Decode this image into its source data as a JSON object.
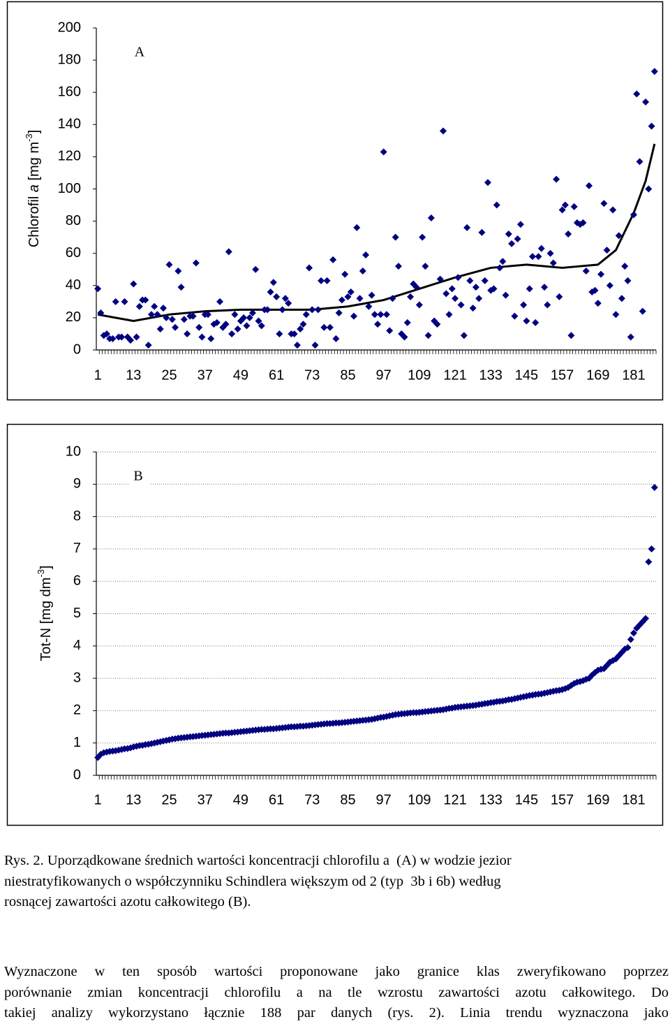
{
  "chart_data": [
    {
      "type": "scatter",
      "panel": "A",
      "ylabel": [
        "Chlorofil ",
        "a",
        " [mg m",
        "-3",
        "]"
      ],
      "color": "#000080",
      "grid": false,
      "ylim": [
        0,
        200
      ],
      "yticks": [
        0,
        20,
        40,
        60,
        80,
        100,
        120,
        140,
        160,
        180,
        200
      ],
      "categories": [
        "1",
        null,
        null,
        null,
        null,
        null,
        null,
        null,
        null,
        null,
        null,
        null,
        "13",
        null,
        null,
        null,
        null,
        null,
        null,
        null,
        null,
        null,
        null,
        null,
        "25",
        null,
        null,
        null,
        null,
        null,
        null,
        null,
        null,
        null,
        null,
        null,
        "37",
        null,
        null,
        null,
        null,
        null,
        null,
        null,
        null,
        null,
        null,
        null,
        "49",
        null,
        null,
        null,
        null,
        null,
        null,
        null,
        null,
        null,
        null,
        null,
        "61",
        null,
        null,
        null,
        null,
        null,
        null,
        null,
        null,
        null,
        null,
        null,
        "73",
        null,
        null,
        null,
        null,
        null,
        null,
        null,
        null,
        null,
        null,
        null,
        "85",
        null,
        null,
        null,
        null,
        null,
        null,
        null,
        null,
        null,
        null,
        null,
        "97",
        null,
        null,
        null,
        null,
        null,
        null,
        null,
        null,
        null,
        null,
        null,
        "109",
        null,
        null,
        null,
        null,
        null,
        null,
        null,
        null,
        null,
        null,
        null,
        "121",
        null,
        null,
        null,
        null,
        null,
        null,
        null,
        null,
        null,
        null,
        null,
        "133",
        null,
        null,
        null,
        null,
        null,
        null,
        null,
        null,
        null,
        null,
        null,
        "145",
        null,
        null,
        null,
        null,
        null,
        null,
        null,
        null,
        null,
        null,
        null,
        "157",
        null,
        null,
        null,
        null,
        null,
        null,
        null,
        null,
        null,
        null,
        null,
        "169",
        null,
        null,
        null,
        null,
        null,
        null,
        null,
        null,
        null,
        null,
        null,
        "181",
        null,
        null,
        null,
        null,
        null,
        null,
        null
      ],
      "values": [
        38,
        23,
        9,
        10,
        7,
        7,
        30,
        8,
        8,
        30,
        8,
        6,
        41,
        8,
        27,
        31,
        31,
        3,
        22,
        27,
        22,
        13,
        26,
        20,
        53,
        19,
        14,
        49,
        39,
        19,
        10,
        21,
        21,
        54,
        14,
        8,
        22,
        22,
        7,
        16,
        17,
        30,
        14,
        16,
        61,
        10,
        22,
        13,
        18,
        20,
        15,
        20,
        23,
        50,
        18,
        15,
        25,
        25,
        36,
        42,
        33,
        10,
        25,
        32,
        29,
        10,
        10,
        3,
        13,
        16,
        22,
        51,
        25,
        3,
        25,
        43,
        14,
        43,
        14,
        56,
        7,
        23,
        31,
        47,
        33,
        36,
        21,
        76,
        32,
        49,
        59,
        27,
        34,
        22,
        16,
        22,
        123,
        22,
        12,
        32,
        70,
        52,
        10,
        8,
        17,
        33,
        41,
        39,
        28,
        70,
        52,
        9,
        82,
        18,
        16,
        44,
        136,
        35,
        22,
        38,
        32,
        45,
        28,
        9,
        76,
        43,
        26,
        39,
        32,
        73,
        43,
        104,
        37,
        38,
        90,
        51,
        55,
        34,
        72,
        66,
        21,
        69,
        78,
        28,
        18,
        38,
        58,
        17,
        58,
        63,
        39,
        28,
        60,
        54,
        106,
        33,
        87,
        90,
        72,
        9,
        89,
        79,
        78,
        79,
        49,
        102,
        36,
        37,
        29,
        47,
        91,
        62,
        40,
        87,
        22,
        71,
        32,
        52,
        43,
        8,
        84,
        159,
        117,
        24,
        154,
        100,
        139,
        173
      ],
      "trend": {
        "color": "#000000",
        "x": [
          1,
          13,
          25,
          37,
          49,
          61,
          73,
          85,
          97,
          109,
          121,
          133,
          145,
          157,
          169,
          175,
          181,
          185,
          188
        ],
        "values": [
          22,
          18,
          22,
          24,
          25,
          25,
          25,
          27,
          31,
          38,
          45,
          51,
          53,
          51,
          53,
          62,
          85,
          105,
          128
        ]
      }
    },
    {
      "type": "scatter",
      "panel": "B",
      "ylabel": [
        "Tot-N [mg dm",
        "-3",
        "]"
      ],
      "color": "#000080",
      "grid": true,
      "ylim": [
        0,
        10
      ],
      "yticks": [
        0,
        1,
        2,
        3,
        4,
        5,
        6,
        7,
        8,
        9,
        10
      ],
      "categories": [
        "1",
        null,
        null,
        null,
        null,
        null,
        null,
        null,
        null,
        null,
        null,
        null,
        "13",
        null,
        null,
        null,
        null,
        null,
        null,
        null,
        null,
        null,
        null,
        null,
        "25",
        null,
        null,
        null,
        null,
        null,
        null,
        null,
        null,
        null,
        null,
        null,
        "37",
        null,
        null,
        null,
        null,
        null,
        null,
        null,
        null,
        null,
        null,
        null,
        "49",
        null,
        null,
        null,
        null,
        null,
        null,
        null,
        null,
        null,
        null,
        null,
        "61",
        null,
        null,
        null,
        null,
        null,
        null,
        null,
        null,
        null,
        null,
        null,
        "73",
        null,
        null,
        null,
        null,
        null,
        null,
        null,
        null,
        null,
        null,
        null,
        "85",
        null,
        null,
        null,
        null,
        null,
        null,
        null,
        null,
        null,
        null,
        null,
        "97",
        null,
        null,
        null,
        null,
        null,
        null,
        null,
        null,
        null,
        null,
        null,
        "109",
        null,
        null,
        null,
        null,
        null,
        null,
        null,
        null,
        null,
        null,
        null,
        "121",
        null,
        null,
        null,
        null,
        null,
        null,
        null,
        null,
        null,
        null,
        null,
        "133",
        null,
        null,
        null,
        null,
        null,
        null,
        null,
        null,
        null,
        null,
        null,
        "145",
        null,
        null,
        null,
        null,
        null,
        null,
        null,
        null,
        null,
        null,
        null,
        "157",
        null,
        null,
        null,
        null,
        null,
        null,
        null,
        null,
        null,
        null,
        null,
        "169",
        null,
        null,
        null,
        null,
        null,
        null,
        null,
        null,
        null,
        null,
        null,
        "181",
        null,
        null,
        null,
        null,
        null,
        null,
        null
      ],
      "values": [
        0.55,
        0.65,
        0.7,
        0.72,
        0.74,
        0.75,
        0.76,
        0.78,
        0.8,
        0.82,
        0.83,
        0.85,
        0.88,
        0.9,
        0.92,
        0.93,
        0.95,
        0.96,
        0.98,
        1.0,
        1.02,
        1.04,
        1.06,
        1.08,
        1.1,
        1.12,
        1.13,
        1.15,
        1.16,
        1.17,
        1.18,
        1.19,
        1.2,
        1.21,
        1.22,
        1.23,
        1.24,
        1.25,
        1.26,
        1.27,
        1.28,
        1.29,
        1.3,
        1.31,
        1.31,
        1.32,
        1.33,
        1.34,
        1.35,
        1.36,
        1.37,
        1.38,
        1.39,
        1.4,
        1.41,
        1.42,
        1.42,
        1.43,
        1.44,
        1.44,
        1.45,
        1.46,
        1.47,
        1.48,
        1.49,
        1.5,
        1.5,
        1.51,
        1.52,
        1.52,
        1.53,
        1.54,
        1.55,
        1.56,
        1.57,
        1.58,
        1.59,
        1.6,
        1.6,
        1.61,
        1.62,
        1.62,
        1.63,
        1.64,
        1.65,
        1.66,
        1.67,
        1.68,
        1.69,
        1.7,
        1.71,
        1.72,
        1.73,
        1.75,
        1.77,
        1.79,
        1.8,
        1.82,
        1.84,
        1.86,
        1.88,
        1.89,
        1.9,
        1.91,
        1.92,
        1.93,
        1.94,
        1.94,
        1.95,
        1.96,
        1.97,
        1.98,
        1.99,
        2.0,
        2.01,
        2.02,
        2.03,
        2.05,
        2.07,
        2.08,
        2.1,
        2.11,
        2.12,
        2.13,
        2.14,
        2.15,
        2.16,
        2.17,
        2.19,
        2.2,
        2.22,
        2.23,
        2.25,
        2.26,
        2.28,
        2.29,
        2.3,
        2.32,
        2.34,
        2.35,
        2.37,
        2.39,
        2.41,
        2.43,
        2.45,
        2.47,
        2.48,
        2.5,
        2.51,
        2.52,
        2.54,
        2.56,
        2.58,
        2.6,
        2.62,
        2.63,
        2.65,
        2.68,
        2.72,
        2.78,
        2.84,
        2.88,
        2.9,
        2.93,
        2.97,
        3.0,
        3.1,
        3.18,
        3.25,
        3.28,
        3.3,
        3.4,
        3.5,
        3.55,
        3.6,
        3.7,
        3.8,
        3.9,
        3.95,
        4.2,
        4.4,
        4.55,
        4.65,
        4.75,
        4.85,
        6.6,
        7.0,
        8.9
      ]
    }
  ],
  "caption": [
    "Rys. 2. Uporządkowane średnich wartości koncentracji chlorofilu a  (A) w wodzie jezior",
    "niestratyfikowanych o współczynniku Schindlera większym od 2 (typ  3b i 6b) według",
    "rosnącej zawartości azotu całkowitego (B)."
  ],
  "paragraph": [
    "Wyznaczone w ten sposób wartości proponowane jako granice klas zweryfikowano poprzez",
    "porównanie zmian koncentracji chlorofilu a na tle wzrostu zawartości azotu całkowitego. Do",
    "takiej analizy wykorzystano łącznie 188 par danych (rys. 2). Linia trendu wyznaczona jako"
  ]
}
